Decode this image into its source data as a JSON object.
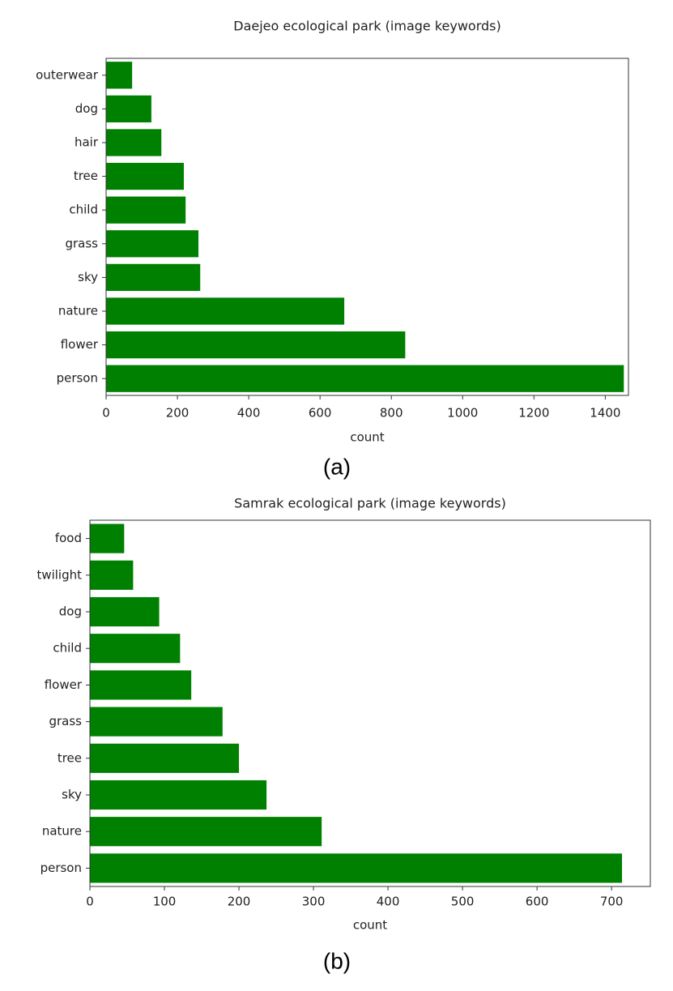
{
  "chart_data": [
    {
      "type": "bar",
      "orientation": "horizontal",
      "title": "Daejeo ecological park (image keywords)",
      "x_label": "count",
      "caption": "(a)",
      "categories": [
        "outerwear",
        "dog",
        "hair",
        "tree",
        "child",
        "grass",
        "sky",
        "nature",
        "flower",
        "person"
      ],
      "values": [
        73,
        127,
        155,
        218,
        223,
        259,
        264,
        668,
        839,
        1452
      ],
      "color": "#008000",
      "xlim": [
        0,
        1465
      ],
      "xticks": [
        0,
        200,
        400,
        600,
        800,
        1000,
        1200,
        1400
      ]
    },
    {
      "type": "bar",
      "orientation": "horizontal",
      "title": "Samrak ecological park (image keywords)",
      "x_label": "count",
      "caption": "(b)",
      "categories": [
        "food",
        "twilight",
        "dog",
        "child",
        "flower",
        "grass",
        "tree",
        "sky",
        "nature",
        "person"
      ],
      "values": [
        46,
        58,
        93,
        121,
        136,
        178,
        200,
        237,
        311,
        714
      ],
      "color": "#008000",
      "xlim": [
        0,
        752
      ],
      "xticks": [
        0,
        100,
        200,
        300,
        400,
        500,
        600,
        700
      ]
    }
  ]
}
